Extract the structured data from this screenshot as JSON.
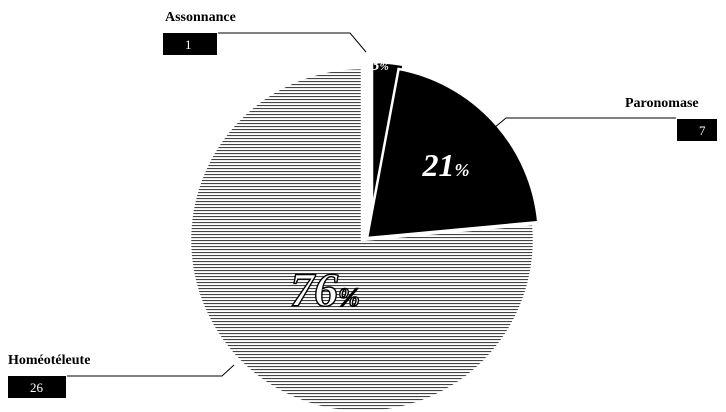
{
  "chart_data": {
    "type": "pie",
    "categories": [
      "Assonnance",
      "Paronomase",
      "Homéotéleute"
    ],
    "values": [
      1,
      7,
      26
    ],
    "percent_labels": [
      "3",
      "21",
      "76"
    ],
    "percent_sign": "%",
    "colors": {
      "Assonnance": "#000000",
      "Paronomase": "#000000",
      "Homéotéleute": "hatched"
    },
    "exploded": [
      "Assonnance",
      "Paronomase"
    ],
    "legend": "none"
  }
}
